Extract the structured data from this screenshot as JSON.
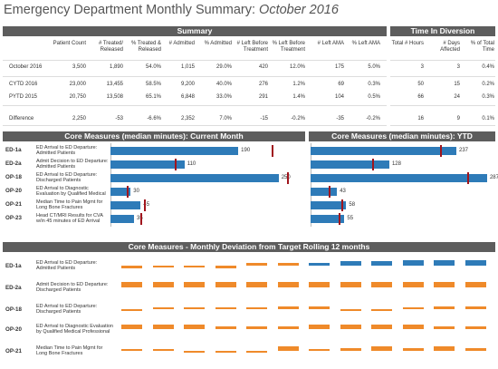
{
  "title": {
    "main": "Emergency Department Monthly Summary: ",
    "month": "October 2016"
  },
  "summary": {
    "header": "Summary",
    "columns": [
      "Patient Count",
      "# Treated/ Released",
      "% Treated & Released",
      "# Admitted",
      "% Admitted",
      "# Left Before Treatment",
      "% Left Before Treatment",
      "# Left AMA",
      "% Left AMA"
    ],
    "rows": [
      {
        "label": "October 2016",
        "values": [
          "3,500",
          "1,890",
          "54.0%",
          "1,015",
          "29.0%",
          "420",
          "12.0%",
          "175",
          "5.0%"
        ]
      },
      {
        "label": "CYTD 2016",
        "values": [
          "23,000",
          "13,455",
          "58.5%",
          "9,200",
          "40.0%",
          "276",
          "1.2%",
          "69",
          "0.3%"
        ]
      },
      {
        "label": "PYTD 2015",
        "values": [
          "20,750",
          "13,508",
          "65.1%",
          "6,848",
          "33.0%",
          "291",
          "1.4%",
          "104",
          "0.5%"
        ]
      },
      {
        "label": "Difference",
        "values": [
          "2,250",
          "-53",
          "-6.6%",
          "2,352",
          "7.0%",
          "-15",
          "-0.2%",
          "-35",
          "-0.2%"
        ]
      }
    ]
  },
  "diversion": {
    "header": "Time In Diversion",
    "columns": [
      "Total # Hours",
      "# Days Affected",
      "% of Total Time"
    ],
    "rows": [
      [
        "3",
        "3",
        "0.4%"
      ],
      [
        "50",
        "15",
        "0.2%"
      ],
      [
        "66",
        "24",
        "0.3%"
      ],
      [
        "16",
        "9",
        "0.1%"
      ]
    ]
  },
  "core_month": {
    "header": "Core Measures (median minutes): Current Month",
    "max": 280,
    "measures": [
      {
        "code": "ED-1a",
        "desc": "ED Arrival to ED Departure: Admitted Patients",
        "value": 190,
        "target": 240
      },
      {
        "code": "ED-2a",
        "desc": "Admit Decision to ED Departure: Admitted Patients",
        "value": 110,
        "target": 95
      },
      {
        "code": "OP-18",
        "desc": "ED Arrival to ED Departure: Discharged Patients",
        "value": 250,
        "target": 262
      },
      {
        "code": "OP-20",
        "desc": "ED Arrival to Diagnostic Evaluation by Qualified Medical",
        "value": 30,
        "target": 24
      },
      {
        "code": "OP-21",
        "desc": "Median Time to Pain Mgmt for Long Bone Fractures",
        "value": 45,
        "target": 50
      },
      {
        "code": "OP-23",
        "desc": "Head CT/MRI Results for CVA w/in 45 minutes of ED Arrival",
        "value": 35,
        "target": 45
      }
    ]
  },
  "core_ytd": {
    "header": "Core Measures (median minutes): YTD",
    "max": 290,
    "measures": [
      {
        "code": "ED-1a",
        "value": 237,
        "target": 210
      },
      {
        "code": "ED-2a",
        "value": 128,
        "target": 100
      },
      {
        "code": "OP-18",
        "value": 287,
        "target": 255
      },
      {
        "code": "OP-20",
        "value": 43,
        "target": 30
      },
      {
        "code": "OP-21",
        "value": 58,
        "target": 50
      },
      {
        "code": "OP-23",
        "value": 55,
        "target": 45
      }
    ]
  },
  "deviation": {
    "header": "Core Measures - Monthly Deviation from Target Rolling 12 months",
    "rows": [
      {
        "code": "ED-1a",
        "desc": "ED Arrival to ED Departure: Admitted Patients",
        "values": [
          -2,
          -1,
          -1,
          -2,
          2,
          2,
          2,
          3,
          3,
          4,
          4,
          4
        ]
      },
      {
        "code": "ED-2a",
        "desc": "Admit Decision to ED Departure: Discharged Patients",
        "values": [
          4,
          4,
          4,
          4,
          4,
          4,
          4,
          4,
          4,
          4,
          4,
          4
        ]
      },
      {
        "code": "OP-18",
        "desc": "ED Arrival to ED Departure: Discharged Patients",
        "values": [
          -1,
          1,
          1,
          1,
          1,
          2,
          2,
          -1,
          -1,
          1,
          2,
          2
        ]
      },
      {
        "code": "OP-20",
        "desc": "ED Arrival to Diagnostic Evaluation by Qualified Medical Professional",
        "values": [
          3,
          3,
          3,
          2,
          2,
          2,
          3,
          3,
          3,
          3,
          2,
          2
        ]
      },
      {
        "code": "OP-21",
        "desc": "Median Time to Pain Mgmt for Long Bone Fractures",
        "values": [
          1,
          1,
          -1,
          -1,
          -1,
          3,
          1,
          2,
          3,
          2,
          3,
          2
        ]
      }
    ]
  },
  "colors": {
    "header_bg": "#5d5d5d",
    "bar_blue": "#2e7bb8",
    "target_red": "#a0151d",
    "dev_orange": "#ef8a2a"
  }
}
